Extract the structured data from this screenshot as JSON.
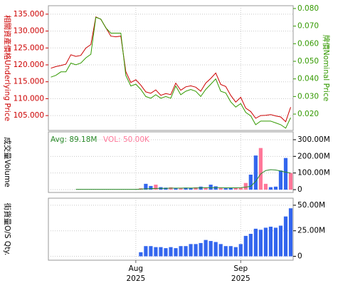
{
  "chart_data": [
    {
      "type": "line",
      "ylabel": "相關資產價格Underlying Price",
      "y2label": "牌價Nominal Price",
      "ylim": [
        100.6,
        137.5
      ],
      "yticks": [
        {
          "value": 105,
          "label": "105.000"
        },
        {
          "value": 110,
          "label": "110.000"
        },
        {
          "value": 115,
          "label": "115.000"
        },
        {
          "value": 120,
          "label": "120.000"
        },
        {
          "value": 125,
          "label": "125.000"
        },
        {
          "value": 130,
          "label": "130.000"
        },
        {
          "value": 135,
          "label": "135.000"
        }
      ],
      "y2lim": [
        0.0107,
        0.0816
      ],
      "y2ticks": [
        {
          "value": 0.02,
          "label": "0.020"
        },
        {
          "value": 0.03,
          "label": "0.030"
        },
        {
          "value": 0.04,
          "label": "0.040"
        },
        {
          "value": 0.05,
          "label": "0.050"
        },
        {
          "value": 0.06,
          "label": "0.060"
        },
        {
          "value": 0.07,
          "label": "0.070"
        },
        {
          "value": 0.08,
          "label": "0.080"
        }
      ],
      "ylabel_color": "#cc0000",
      "y2label_color": "#339900",
      "grid": true,
      "series": [
        {
          "color": "#cc0000",
          "values": [
            119.0,
            119.5,
            119.8,
            120.2,
            123.0,
            122.5,
            122.8,
            125.0,
            126.0,
            134.2,
            133.5,
            131.0,
            128.5,
            128.3,
            128.5,
            118.0,
            114.8,
            115.6,
            114.0,
            112.0,
            111.6,
            112.6,
            111.0,
            111.5,
            111.2,
            114.6,
            112.5,
            113.5,
            113.8,
            113.4,
            112.2,
            114.6,
            116.0,
            117.6,
            114.2,
            113.6,
            111.0,
            109.0,
            110.4,
            107.2,
            106.2,
            104.2,
            105.0,
            105.1,
            105.3,
            104.9,
            104.6,
            103.2,
            107.5
          ]
        },
        {
          "color": "#339900",
          "axis": "y2",
          "values": [
            0.041,
            0.042,
            0.044,
            0.044,
            0.049,
            0.048,
            0.049,
            0.052,
            0.054,
            0.075,
            0.074,
            0.069,
            0.066,
            0.066,
            0.066,
            0.042,
            0.036,
            0.037,
            0.034,
            0.03,
            0.029,
            0.031,
            0.029,
            0.03,
            0.029,
            0.036,
            0.031,
            0.033,
            0.034,
            0.033,
            0.03,
            0.034,
            0.037,
            0.04,
            0.033,
            0.032,
            0.027,
            0.024,
            0.026,
            0.021,
            0.019,
            0.014,
            0.016,
            0.016,
            0.016,
            0.015,
            0.014,
            0.012,
            0.018
          ]
        }
      ]
    },
    {
      "type": "bar",
      "ylabel": "成交量Volume",
      "ylim": [
        -17,
        347
      ],
      "y2ticks": [
        0,
        {
          "value": 100,
          "label": "100.00M"
        },
        {
          "value": 200,
          "label": "200.00M"
        },
        {
          "value": 300,
          "label": "300.00M"
        }
      ],
      "annotations": [
        {
          "text": "Avg: 89.18M",
          "color": "#2a8a2a"
        },
        {
          "text": "VOL: 50.00K",
          "color": "#ff7799"
        }
      ],
      "grid": true,
      "values": [
        0,
        0,
        0,
        0,
        0,
        0,
        0,
        0,
        0,
        0,
        0,
        0,
        0,
        0,
        0,
        0,
        0,
        0,
        8,
        35,
        22,
        30,
        15,
        12,
        14,
        8,
        10,
        12,
        10,
        14,
        18,
        12,
        30,
        20,
        10,
        8,
        10,
        10,
        12,
        40,
        90,
        205,
        250,
        35,
        15,
        18,
        115,
        190,
        100
      ],
      "colors": [
        "#3366ee",
        "#3366ee",
        "#3366ee",
        "#3366ee",
        "#3366ee",
        "#3366ee",
        "#3366ee",
        "#3366ee",
        "#3366ee",
        "#3366ee",
        "#3366ee",
        "#3366ee",
        "#3366ee",
        "#3366ee",
        "#3366ee",
        "#3366ee",
        "#3366ee",
        "#3366ee",
        "#ff7799",
        "#3366ee",
        "#3366ee",
        "#ff7799",
        "#3366ee",
        "#3366ee",
        "#ff7799",
        "#3366ee",
        "#ff7799",
        "#3366ee",
        "#3366ee",
        "#ff7799",
        "#3366ee",
        "#ff7799",
        "#3366ee",
        "#3366ee",
        "#ff7799",
        "#3366ee",
        "#3366ee",
        "#ff7799",
        "#ff7799",
        "#ff7799",
        "#3366ee",
        "#3366ee",
        "#ff7799",
        "#ff7799",
        "#3366ee",
        "#3366ee",
        "#3366ee",
        "#3366ee",
        "#ff7799"
      ],
      "line": {
        "color": "#2a8a2a",
        "values": [
          null,
          null,
          null,
          null,
          null,
          2,
          2,
          2,
          2,
          2,
          2,
          2,
          2,
          2,
          2,
          2,
          2,
          2,
          3,
          5,
          6,
          7,
          8,
          8,
          9,
          9,
          9,
          10,
          10,
          10,
          11,
          12,
          12,
          12,
          12,
          11,
          11,
          11,
          12,
          15,
          20,
          50,
          95,
          115,
          120,
          118,
          112,
          105,
          100
        ]
      }
    },
    {
      "type": "bar",
      "ylabel": "街貨量O/S Qty.",
      "ylim": [
        -3.8,
        56.9
      ],
      "y2ticks": [
        0,
        {
          "value": 25,
          "label": "25.00M"
        },
        {
          "value": 50,
          "label": "50.00M"
        }
      ],
      "color": "#3366ee",
      "grid": true,
      "values": [
        null,
        null,
        null,
        null,
        null,
        null,
        null,
        null,
        null,
        null,
        null,
        null,
        null,
        null,
        null,
        null,
        null,
        null,
        4,
        10,
        10,
        9,
        9,
        8,
        9,
        8,
        10,
        10,
        12,
        12,
        13,
        16,
        15,
        14,
        12,
        10,
        10,
        9,
        12,
        20,
        22,
        27,
        26,
        28,
        29,
        28,
        30,
        39,
        47
      ],
      "categories": [
        null,
        null,
        null,
        null,
        null,
        null,
        null,
        null,
        null,
        null,
        null,
        null,
        null,
        null,
        null,
        null,
        null,
        [
          "Aug",
          "2025"
        ],
        null,
        null,
        null,
        null,
        null,
        null,
        null,
        null,
        null,
        null,
        null,
        null,
        null,
        null,
        null,
        null,
        null,
        null,
        null,
        null,
        [
          "Sep",
          "2025"
        ],
        null,
        null,
        null,
        null,
        null,
        null,
        null,
        null,
        null,
        null
      ]
    }
  ]
}
